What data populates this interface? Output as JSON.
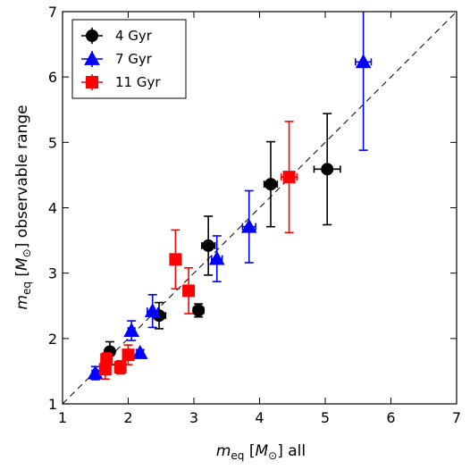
{
  "chart_data": {
    "type": "scatter",
    "title": "",
    "xlabel": {
      "math": "m",
      "sub": "eq",
      "bracket_math": "M",
      "sub2": "⊙",
      "suffix": "all"
    },
    "ylabel": {
      "math": "m",
      "sub": "eq",
      "bracket_math": "M",
      "sub2": "⊙",
      "suffix": "observable range"
    },
    "xlim": [
      1,
      7
    ],
    "ylim": [
      1,
      7
    ],
    "xticks": [
      "1",
      "2",
      "3",
      "4",
      "5",
      "6",
      "7"
    ],
    "yticks": [
      "1",
      "2",
      "3",
      "4",
      "5",
      "6",
      "7"
    ],
    "reference_line": "y = x (dashed)",
    "legend_position": "top-left",
    "series": [
      {
        "name": "4 Gyr",
        "marker": "circle",
        "color": "#000000",
        "points": [
          {
            "x": 1.72,
            "y": 1.8,
            "xerr": 0.05,
            "yerr_low": 0.2,
            "yerr_high": 0.15
          },
          {
            "x": 2.47,
            "y": 2.35,
            "xerr": 0.1,
            "yerr_low": 0.2,
            "yerr_high": 0.2
          },
          {
            "x": 3.07,
            "y": 2.43,
            "xerr": 0.08,
            "yerr_low": 0.1,
            "yerr_high": 0.1
          },
          {
            "x": 3.22,
            "y": 3.42,
            "xerr": 0.1,
            "yerr_low": 0.45,
            "yerr_high": 0.45
          },
          {
            "x": 4.17,
            "y": 4.36,
            "xerr": 0.1,
            "yerr_low": 0.65,
            "yerr_high": 0.65
          },
          {
            "x": 5.03,
            "y": 4.59,
            "xerr": 0.2,
            "yerr_low": 0.85,
            "yerr_high": 0.85
          }
        ]
      },
      {
        "name": "7 Gyr",
        "marker": "triangle",
        "color": "#0000ff",
        "points": [
          {
            "x": 1.5,
            "y": 1.47,
            "xerr": 0.05,
            "yerr_low": 0.1,
            "yerr_high": 0.1
          },
          {
            "x": 2.05,
            "y": 2.12,
            "xerr": 0.05,
            "yerr_low": 0.15,
            "yerr_high": 0.15
          },
          {
            "x": 2.18,
            "y": 1.78,
            "xerr": 0.05,
            "yerr_low": 0.05,
            "yerr_high": 0.05
          },
          {
            "x": 2.37,
            "y": 2.42,
            "xerr": 0.08,
            "yerr_low": 0.25,
            "yerr_high": 0.25
          },
          {
            "x": 3.35,
            "y": 3.22,
            "xerr": 0.08,
            "yerr_low": 0.35,
            "yerr_high": 0.35
          },
          {
            "x": 3.84,
            "y": 3.71,
            "xerr": 0.1,
            "yerr_low": 0.55,
            "yerr_high": 0.55
          },
          {
            "x": 5.58,
            "y": 6.23,
            "xerr": 0.12,
            "yerr_low": 1.35,
            "yerr_high": 0.85
          }
        ]
      },
      {
        "name": "11 Gyr",
        "marker": "square",
        "color": "#ff0000",
        "points": [
          {
            "x": 1.65,
            "y": 1.53,
            "xerr": 0.05,
            "yerr_low": 0.15,
            "yerr_high": 0.15
          },
          {
            "x": 1.67,
            "y": 1.68,
            "xerr": 0.05,
            "yerr_low": 0.1,
            "yerr_high": 0.1
          },
          {
            "x": 1.88,
            "y": 1.56,
            "xerr": 0.05,
            "yerr_low": 0.1,
            "yerr_high": 0.1
          },
          {
            "x": 2.0,
            "y": 1.75,
            "xerr": 0.05,
            "yerr_low": 0.15,
            "yerr_high": 0.15
          },
          {
            "x": 2.72,
            "y": 3.21,
            "xerr": 0.06,
            "yerr_low": 0.45,
            "yerr_high": 0.45
          },
          {
            "x": 2.92,
            "y": 2.73,
            "xerr": 0.08,
            "yerr_low": 0.35,
            "yerr_high": 0.35
          },
          {
            "x": 4.45,
            "y": 4.47,
            "xerr": 0.12,
            "yerr_low": 0.85,
            "yerr_high": 0.85
          }
        ]
      }
    ]
  }
}
